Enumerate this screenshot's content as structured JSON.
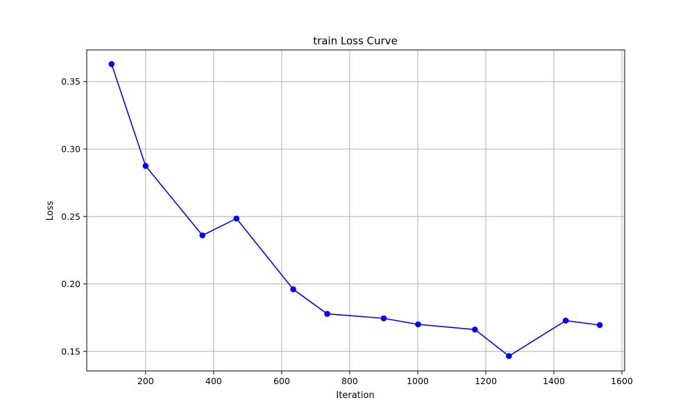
{
  "chart_data": {
    "type": "line",
    "title": "train Loss Curve",
    "xlabel": "Iteration",
    "ylabel": "Loss",
    "xlim": [
      27,
      1608
    ],
    "ylim": [
      0.1355,
      0.3735
    ],
    "xticks": [
      200,
      400,
      600,
      800,
      1000,
      1200,
      1400,
      1600
    ],
    "yticks": [
      0.15,
      0.2,
      0.25,
      0.3,
      0.35
    ],
    "xtick_labels": [
      "200",
      "400",
      "600",
      "800",
      "1000",
      "1200",
      "1400",
      "1600"
    ],
    "ytick_labels": [
      "0.15",
      "0.20",
      "0.25",
      "0.30",
      "0.35"
    ],
    "grid": true,
    "series": [
      {
        "color": "#0000ff",
        "marker": "circle",
        "x": [
          100,
          200,
          367,
          467,
          634,
          734,
          900,
          1001,
          1168,
          1268,
          1435,
          1535
        ],
        "y": [
          0.363,
          0.2875,
          0.236,
          0.2485,
          0.196,
          0.1778,
          0.1745,
          0.17,
          0.1662,
          0.1465,
          0.1728,
          0.1695
        ]
      }
    ]
  }
}
